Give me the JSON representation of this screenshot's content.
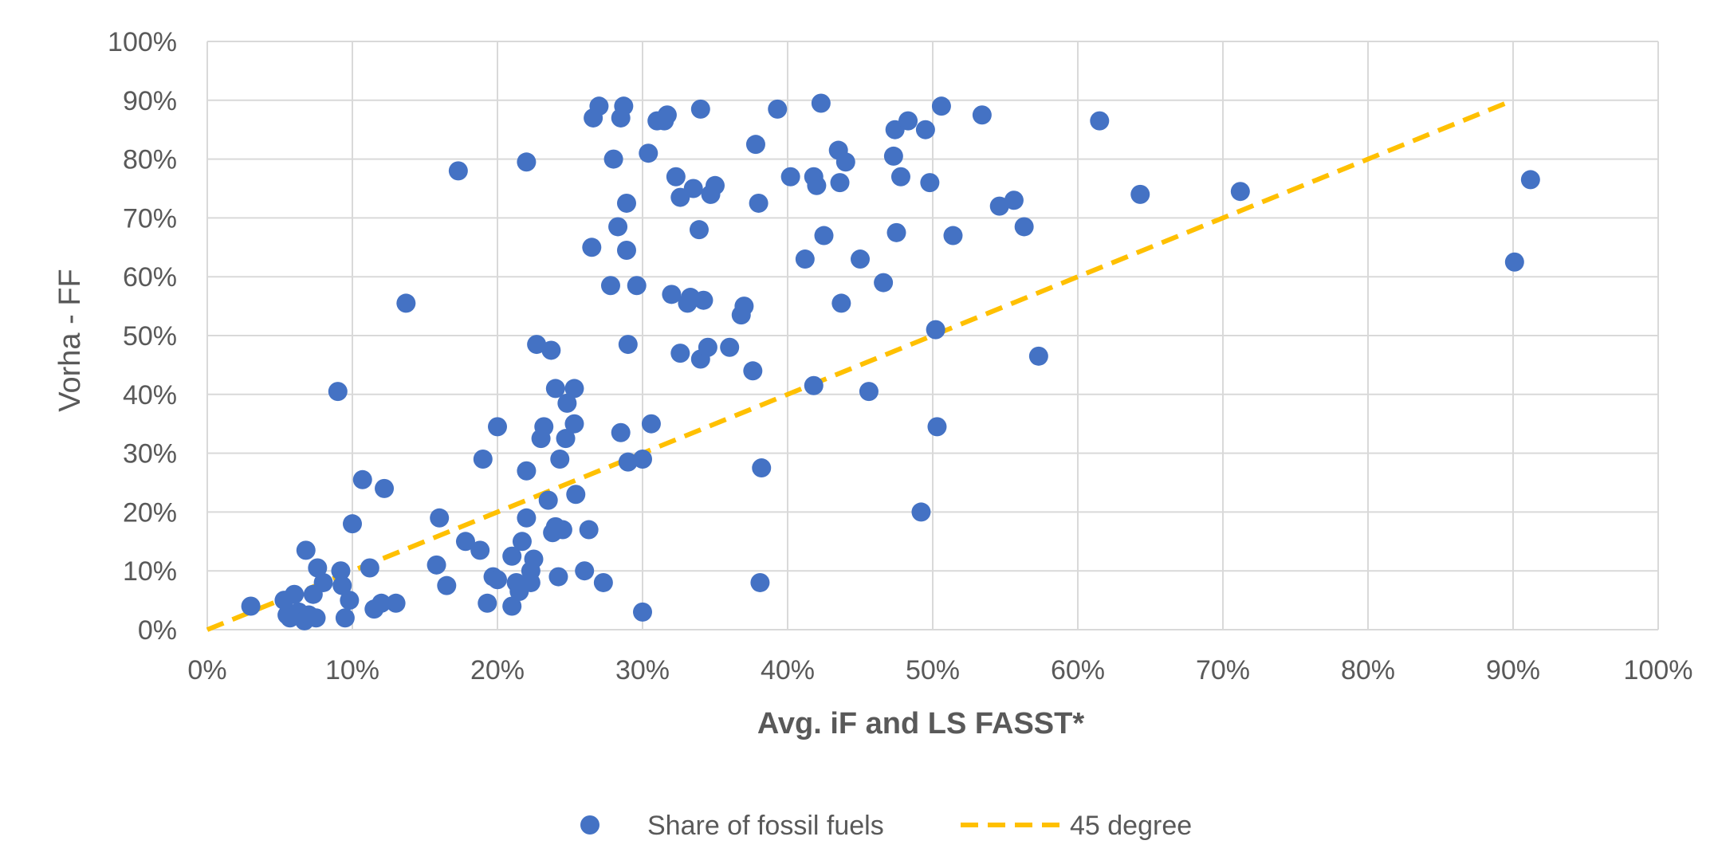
{
  "chart_data": {
    "type": "scatter",
    "title": "",
    "xlabel": "Avg. iF and LS FASST*",
    "ylabel": "Vorha - FF",
    "xlim": [
      0,
      1
    ],
    "ylim": [
      0,
      1
    ],
    "x_ticks": [
      "0%",
      "10%",
      "20%",
      "30%",
      "40%",
      "50%",
      "60%",
      "70%",
      "80%",
      "90%",
      "100%"
    ],
    "y_ticks": [
      "0%",
      "10%",
      "20%",
      "30%",
      "40%",
      "50%",
      "60%",
      "70%",
      "80%",
      "90%",
      "100%"
    ],
    "grid": true,
    "legend_position": "bottom",
    "colors": {
      "points": "#4472C4",
      "reference_line": "#FFC000",
      "grid": "#D9D9D9",
      "text": "#595959"
    },
    "series": [
      {
        "name": "Share of fossil fuels",
        "kind": "scatter",
        "points": [
          [
            0.03,
            0.04
          ],
          [
            0.053,
            0.05
          ],
          [
            0.055,
            0.025
          ],
          [
            0.057,
            0.02
          ],
          [
            0.06,
            0.06
          ],
          [
            0.063,
            0.03
          ],
          [
            0.067,
            0.015
          ],
          [
            0.068,
            0.135
          ],
          [
            0.07,
            0.025
          ],
          [
            0.073,
            0.06
          ],
          [
            0.075,
            0.02
          ],
          [
            0.076,
            0.105
          ],
          [
            0.08,
            0.08
          ],
          [
            0.09,
            0.405
          ],
          [
            0.092,
            0.1
          ],
          [
            0.093,
            0.075
          ],
          [
            0.095,
            0.02
          ],
          [
            0.098,
            0.05
          ],
          [
            0.1,
            0.18
          ],
          [
            0.107,
            0.255
          ],
          [
            0.112,
            0.105
          ],
          [
            0.115,
            0.035
          ],
          [
            0.12,
            0.045
          ],
          [
            0.122,
            0.24
          ],
          [
            0.13,
            0.045
          ],
          [
            0.137,
            0.555
          ],
          [
            0.158,
            0.11
          ],
          [
            0.16,
            0.19
          ],
          [
            0.165,
            0.075
          ],
          [
            0.173,
            0.78
          ],
          [
            0.178,
            0.15
          ],
          [
            0.188,
            0.135
          ],
          [
            0.19,
            0.29
          ],
          [
            0.193,
            0.045
          ],
          [
            0.197,
            0.09
          ],
          [
            0.2,
            0.345
          ],
          [
            0.2,
            0.085
          ],
          [
            0.21,
            0.125
          ],
          [
            0.21,
            0.04
          ],
          [
            0.213,
            0.08
          ],
          [
            0.215,
            0.065
          ],
          [
            0.217,
            0.15
          ],
          [
            0.22,
            0.19
          ],
          [
            0.22,
            0.27
          ],
          [
            0.22,
            0.795
          ],
          [
            0.223,
            0.1
          ],
          [
            0.223,
            0.08
          ],
          [
            0.225,
            0.12
          ],
          [
            0.227,
            0.485
          ],
          [
            0.23,
            0.325
          ],
          [
            0.232,
            0.345
          ],
          [
            0.235,
            0.22
          ],
          [
            0.237,
            0.475
          ],
          [
            0.238,
            0.165
          ],
          [
            0.24,
            0.41
          ],
          [
            0.24,
            0.175
          ],
          [
            0.242,
            0.09
          ],
          [
            0.243,
            0.29
          ],
          [
            0.245,
            0.17
          ],
          [
            0.247,
            0.325
          ],
          [
            0.248,
            0.385
          ],
          [
            0.253,
            0.41
          ],
          [
            0.253,
            0.35
          ],
          [
            0.254,
            0.23
          ],
          [
            0.26,
            0.1
          ],
          [
            0.263,
            0.17
          ],
          [
            0.265,
            0.65
          ],
          [
            0.266,
            0.87
          ],
          [
            0.27,
            0.89
          ],
          [
            0.273,
            0.08
          ],
          [
            0.278,
            0.585
          ],
          [
            0.28,
            0.8
          ],
          [
            0.283,
            0.685
          ],
          [
            0.285,
            0.335
          ],
          [
            0.285,
            0.87
          ],
          [
            0.287,
            0.89
          ],
          [
            0.289,
            0.645
          ],
          [
            0.289,
            0.725
          ],
          [
            0.29,
            0.485
          ],
          [
            0.29,
            0.285
          ],
          [
            0.296,
            0.585
          ],
          [
            0.3,
            0.29
          ],
          [
            0.3,
            0.03
          ],
          [
            0.304,
            0.81
          ],
          [
            0.306,
            0.35
          ],
          [
            0.31,
            0.865
          ],
          [
            0.315,
            0.865
          ],
          [
            0.317,
            0.875
          ],
          [
            0.32,
            0.57
          ],
          [
            0.323,
            0.77
          ],
          [
            0.326,
            0.47
          ],
          [
            0.326,
            0.735
          ],
          [
            0.331,
            0.555
          ],
          [
            0.333,
            0.565
          ],
          [
            0.335,
            0.75
          ],
          [
            0.339,
            0.68
          ],
          [
            0.34,
            0.46
          ],
          [
            0.34,
            0.885
          ],
          [
            0.342,
            0.56
          ],
          [
            0.345,
            0.48
          ],
          [
            0.347,
            0.74
          ],
          [
            0.35,
            0.755
          ],
          [
            0.36,
            0.48
          ],
          [
            0.368,
            0.535
          ],
          [
            0.37,
            0.55
          ],
          [
            0.376,
            0.44
          ],
          [
            0.378,
            0.825
          ],
          [
            0.38,
            0.725
          ],
          [
            0.381,
            0.08
          ],
          [
            0.382,
            0.275
          ],
          [
            0.393,
            0.885
          ],
          [
            0.402,
            0.77
          ],
          [
            0.412,
            0.63
          ],
          [
            0.418,
            0.415
          ],
          [
            0.418,
            0.77
          ],
          [
            0.42,
            0.755
          ],
          [
            0.423,
            0.895
          ],
          [
            0.425,
            0.67
          ],
          [
            0.435,
            0.815
          ],
          [
            0.436,
            0.76
          ],
          [
            0.437,
            0.555
          ],
          [
            0.44,
            0.795
          ],
          [
            0.45,
            0.63
          ],
          [
            0.456,
            0.405
          ],
          [
            0.466,
            0.59
          ],
          [
            0.473,
            0.805
          ],
          [
            0.474,
            0.85
          ],
          [
            0.475,
            0.675
          ],
          [
            0.478,
            0.77
          ],
          [
            0.483,
            0.865
          ],
          [
            0.492,
            0.2
          ],
          [
            0.495,
            0.85
          ],
          [
            0.498,
            0.76
          ],
          [
            0.502,
            0.51
          ],
          [
            0.503,
            0.345
          ],
          [
            0.506,
            0.89
          ],
          [
            0.514,
            0.67
          ],
          [
            0.534,
            0.875
          ],
          [
            0.546,
            0.72
          ],
          [
            0.556,
            0.73
          ],
          [
            0.563,
            0.685
          ],
          [
            0.573,
            0.465
          ],
          [
            0.615,
            0.865
          ],
          [
            0.643,
            0.74
          ],
          [
            0.712,
            0.745
          ],
          [
            0.901,
            0.625
          ],
          [
            0.912,
            0.765
          ]
        ]
      },
      {
        "name": "45 degree",
        "kind": "line",
        "dashed": true,
        "points": [
          [
            0,
            0
          ],
          [
            0.9,
            0.9
          ]
        ]
      }
    ]
  }
}
